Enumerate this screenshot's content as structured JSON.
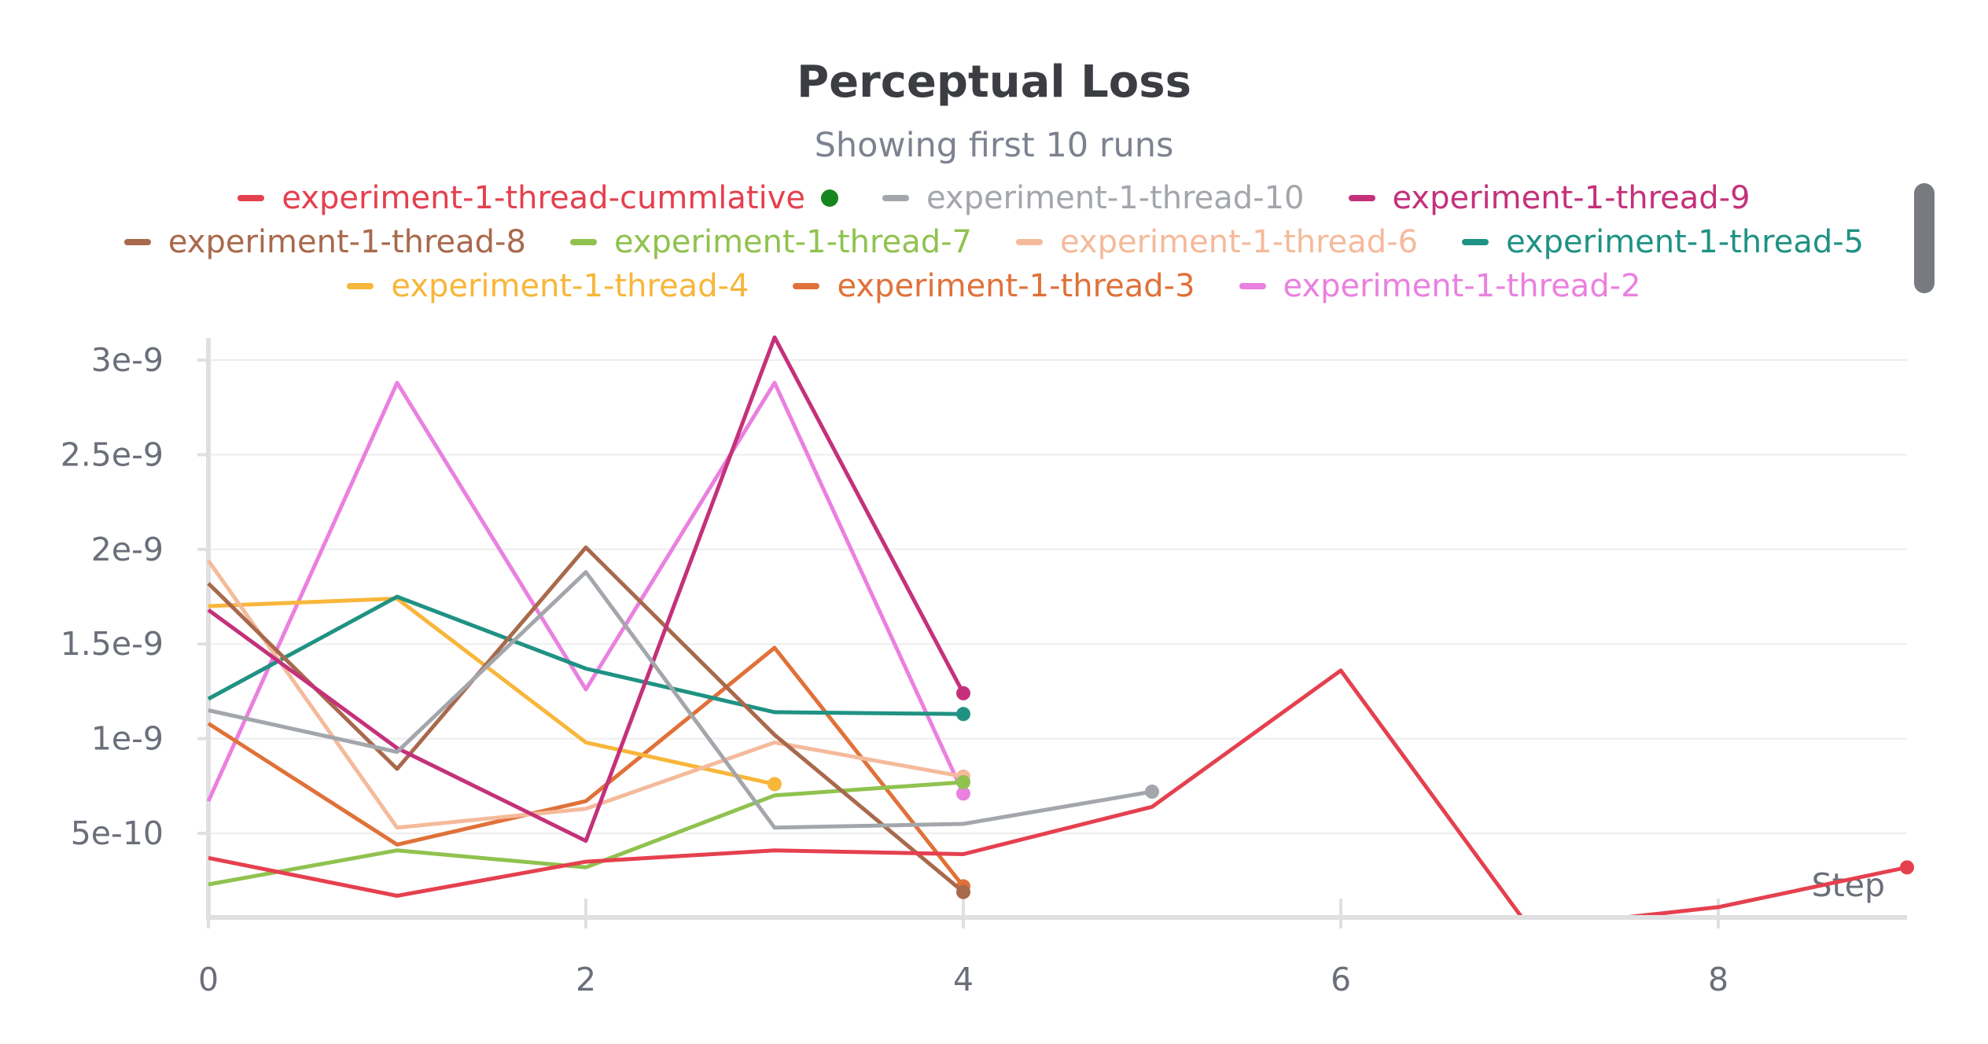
{
  "chart_data": {
    "type": "line",
    "title": "Perceptual Loss",
    "subtitle": "Showing first 10 runs",
    "xlabel": "Step",
    "ylabel": "",
    "xlim": [
      0,
      9
    ],
    "ylim": [
      0,
      3e-09
    ],
    "x_ticks": [
      0,
      2,
      4,
      6,
      8
    ],
    "x_tick_labels": [
      "0",
      "2",
      "4",
      "6",
      "8"
    ],
    "y_ticks": [
      5e-10,
      1e-09,
      1.5e-09,
      2e-09,
      2.5e-09,
      3e-09
    ],
    "y_tick_labels": [
      "5e-10",
      "1e-9",
      "1.5e-9",
      "2e-9",
      "2.5e-9",
      "3e-9"
    ],
    "grid": true,
    "legend_position": "top",
    "series": [
      {
        "name": "experiment-1-thread-cummlative",
        "color": "#e5404e",
        "x": [
          0,
          1,
          2,
          3,
          4,
          5,
          6,
          7,
          8,
          9
        ],
        "y": [
          3.7e-10,
          1.7e-10,
          3.5e-10,
          4.1e-10,
          3.9e-10,
          6.4e-10,
          1.36e-09,
          0,
          1.1e-10,
          3.2e-10
        ]
      },
      {
        "name": "experiment-1-thread-10",
        "color": "#a3a6ab",
        "x": [
          0,
          1,
          2,
          3,
          4,
          5
        ],
        "y": [
          1.15e-09,
          9.3e-10,
          1.88e-09,
          5.3e-10,
          5.5e-10,
          7.2e-10
        ]
      },
      {
        "name": "experiment-1-thread-9",
        "color": "#c4317a",
        "x": [
          0,
          1,
          2,
          3,
          4
        ],
        "y": [
          1.68e-09,
          9.5e-10,
          4.6e-10,
          3.12e-09,
          1.24e-09
        ]
      },
      {
        "name": "experiment-1-thread-8",
        "color": "#a8694c",
        "x": [
          0,
          1,
          2,
          3,
          4
        ],
        "y": [
          1.82e-09,
          8.4e-10,
          2.01e-09,
          1.02e-09,
          1.9e-10
        ]
      },
      {
        "name": "experiment-1-thread-7",
        "color": "#90c24f",
        "x": [
          0,
          1,
          2,
          3,
          4
        ],
        "y": [
          2.3e-10,
          4.1e-10,
          3.2e-10,
          7e-10,
          7.7e-10
        ]
      },
      {
        "name": "experiment-1-thread-6",
        "color": "#f5ba9b",
        "x": [
          0,
          1,
          2,
          3,
          4
        ],
        "y": [
          1.94e-09,
          5.3e-10,
          6.3e-10,
          9.8e-10,
          8e-10
        ]
      },
      {
        "name": "experiment-1-thread-5",
        "color": "#1f9283",
        "x": [
          0,
          1,
          2,
          3,
          4
        ],
        "y": [
          1.21e-09,
          1.75e-09,
          1.37e-09,
          1.14e-09,
          1.13e-09
        ]
      },
      {
        "name": "experiment-1-thread-4",
        "color": "#f8b63a",
        "x": [
          0,
          1,
          2,
          3
        ],
        "y": [
          1.7e-09,
          1.74e-09,
          9.8e-10,
          7.6e-10
        ]
      },
      {
        "name": "experiment-1-thread-3",
        "color": "#e07139",
        "x": [
          0,
          1,
          2,
          3,
          4
        ],
        "y": [
          1.08e-09,
          4.4e-10,
          6.7e-10,
          1.48e-09,
          2.2e-10
        ]
      },
      {
        "name": "experiment-1-thread-2",
        "color": "#ea80e0",
        "x": [
          0,
          1,
          2,
          3,
          4
        ],
        "y": [
          6.7e-10,
          2.88e-09,
          1.26e-09,
          2.88e-09,
          7.1e-10
        ]
      }
    ]
  },
  "legend": {
    "rows": [
      [
        {
          "label": "experiment-1-thread-cummlative",
          "color": "#e5404e",
          "marker_color": "#16861e"
        },
        {
          "label": "experiment-1-thread-10",
          "color": "#a3a6ab"
        },
        {
          "label": "experiment-1-thread-9",
          "color": "#c4317a"
        }
      ],
      [
        {
          "label": "experiment-1-thread-8",
          "color": "#a8694c"
        },
        {
          "label": "experiment-1-thread-7",
          "color": "#90c24f"
        },
        {
          "label": "experiment-1-thread-6",
          "color": "#f5ba9b"
        },
        {
          "label": "experiment-1-thread-5",
          "color": "#1f9283"
        }
      ],
      [
        {
          "label": "experiment-1-thread-4",
          "color": "#f8b63a"
        },
        {
          "label": "experiment-1-thread-3",
          "color": "#e07139"
        },
        {
          "label": "experiment-1-thread-2",
          "color": "#ea80e0"
        }
      ]
    ]
  },
  "colors": {
    "axis": "#e0e0e2",
    "grid": "#ededee",
    "tick_text": "#6b6f7a",
    "title": "#3b3d42",
    "subtitle": "#7d8290",
    "scrollbar": "#777a7f"
  }
}
